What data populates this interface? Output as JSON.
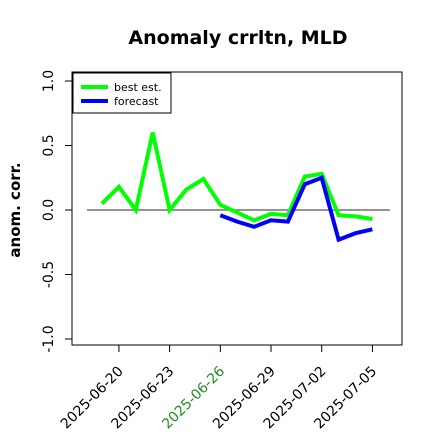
{
  "chart_data": {
    "type": "line",
    "title": "Anomaly crrltn, MLD",
    "ylabel": "anom. corr.",
    "xlabel": "",
    "ylim": [
      -1.0,
      1.0
    ],
    "yticks": [
      "-1.0",
      "-0.5",
      "0.0",
      "0.5",
      "1.0"
    ],
    "xticks": [
      "2025-06-20",
      "2025-06-23",
      "2025-06-26",
      "2025-06-29",
      "2025-07-02",
      "2025-07-05"
    ],
    "highlighted_xtick": "2025-06-26",
    "highlight_color": "#228b22",
    "reference_line": 0.0,
    "grid": false,
    "legend_position": "top-left",
    "x": [
      "2025-06-19",
      "2025-06-20",
      "2025-06-21",
      "2025-06-22",
      "2025-06-23",
      "2025-06-24",
      "2025-06-25",
      "2025-06-26",
      "2025-06-27",
      "2025-06-28",
      "2025-06-29",
      "2025-06-30",
      "2025-07-01",
      "2025-07-02",
      "2025-07-03",
      "2025-07-04",
      "2025-07-05"
    ],
    "series": [
      {
        "name": "best est.",
        "color": "#00ff00",
        "values": [
          0.05,
          0.18,
          0.0,
          0.6,
          0.0,
          0.16,
          0.24,
          0.04,
          -0.02,
          -0.08,
          -0.03,
          -0.04,
          0.26,
          0.28,
          -0.04,
          -0.05,
          -0.07
        ]
      },
      {
        "name": "forecast",
        "color": "#0000ff",
        "values": [
          null,
          null,
          null,
          null,
          null,
          null,
          null,
          -0.04,
          -0.09,
          -0.13,
          -0.08,
          -0.09,
          0.2,
          0.25,
          -0.23,
          -0.18,
          -0.15
        ]
      }
    ]
  }
}
